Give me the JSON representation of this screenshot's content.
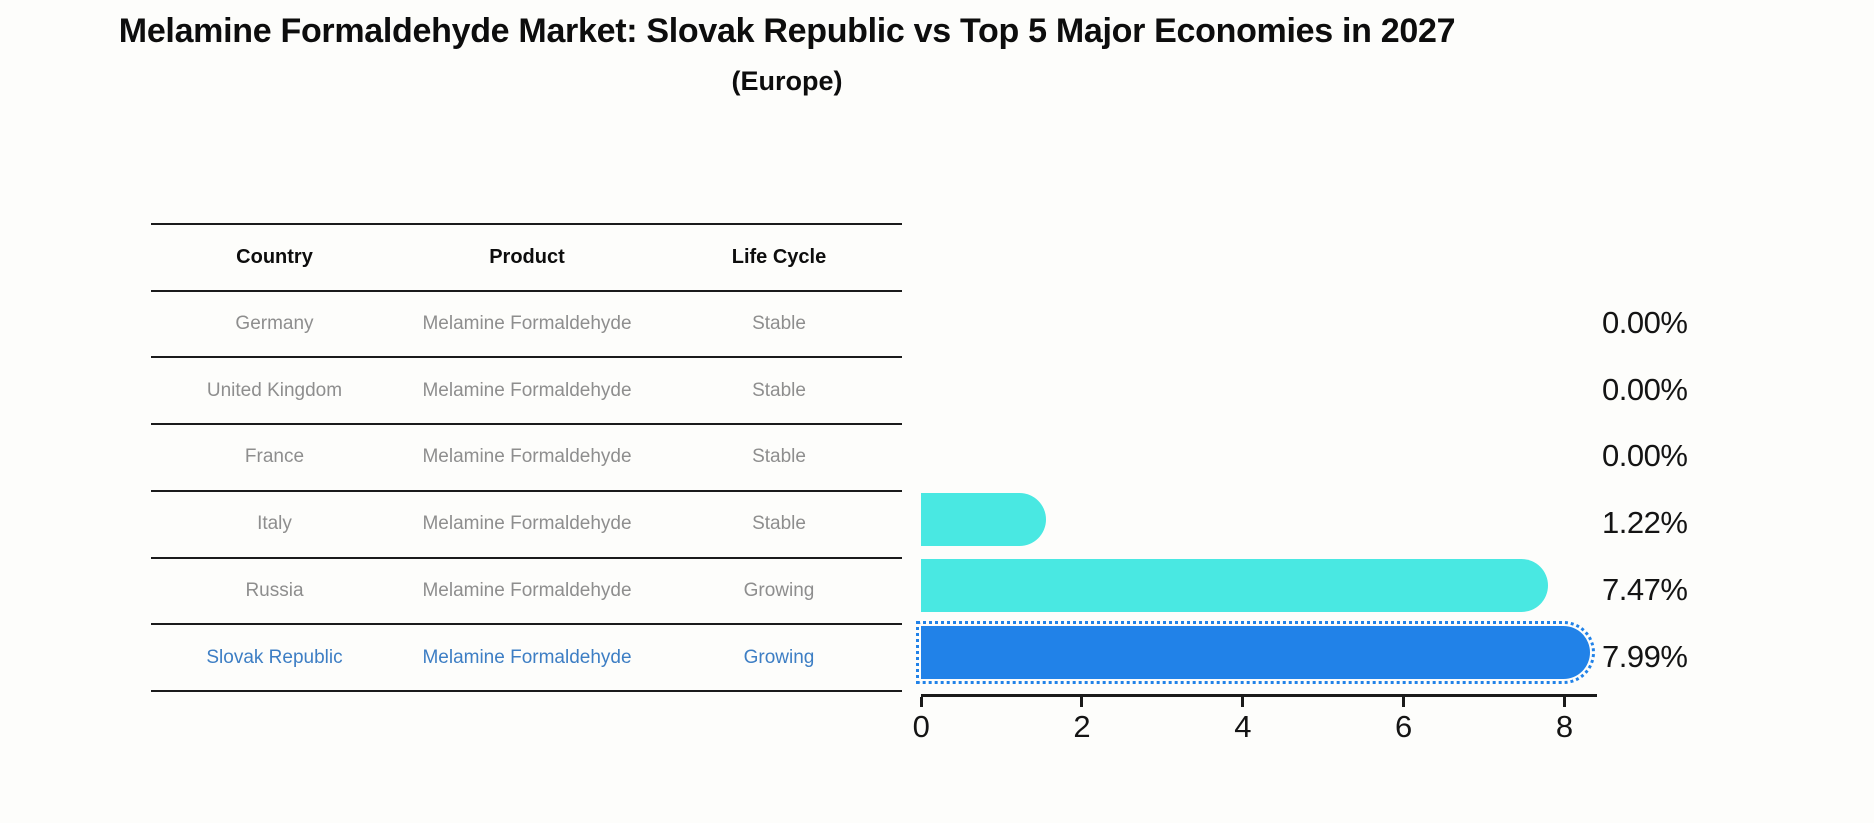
{
  "title": "Melamine Formaldehyde Market: Slovak Republic vs Top 5 Major Economies in 2027",
  "subtitle": "(Europe)",
  "table": {
    "headers": [
      "Country",
      "Product",
      "Life Cycle"
    ],
    "rows": [
      {
        "country": "Germany",
        "product": "Melamine Formaldehyde",
        "life_cycle": "Stable",
        "highlighted": false
      },
      {
        "country": "United Kingdom",
        "product": "Melamine Formaldehyde",
        "life_cycle": "Stable",
        "highlighted": false
      },
      {
        "country": "France",
        "product": "Melamine Formaldehyde",
        "life_cycle": "Stable",
        "highlighted": false
      },
      {
        "country": "Italy",
        "product": "Melamine Formaldehyde",
        "life_cycle": "Stable",
        "highlighted": false
      },
      {
        "country": "Russia",
        "product": "Melamine Formaldehyde",
        "life_cycle": "Growing",
        "highlighted": false
      },
      {
        "country": "Slovak Republic",
        "product": "Melamine Formaldehyde",
        "life_cycle": "Growing",
        "highlighted": true
      }
    ]
  },
  "chart_data": {
    "type": "bar",
    "orientation": "horizontal",
    "title": "Melamine Formaldehyde Market: Slovak Republic vs Top 5 Major Economies in 2027",
    "subtitle": "(Europe)",
    "categories": [
      "Germany",
      "United Kingdom",
      "France",
      "Italy",
      "Russia",
      "Slovak Republic"
    ],
    "values": [
      0.0,
      0.0,
      0.0,
      1.22,
      7.47,
      7.99
    ],
    "value_labels": [
      "0.00%",
      "0.00%",
      "0.00%",
      "1.22%",
      "7.47%",
      "7.99%"
    ],
    "unit": "%",
    "xlim": [
      0,
      8.4
    ],
    "x_ticks": [
      0,
      2,
      4,
      6,
      8
    ],
    "grid": false,
    "legend": false,
    "highlight_index": 5
  },
  "colors": {
    "background": "#fdfdfb",
    "bar_default": "#49e8e2",
    "bar_highlight": "#2182e8",
    "highlight_text": "#3d7ec4",
    "row_text": "#8e8e8e",
    "header_text": "#0d0d0d",
    "axis": "#1a1a1a",
    "value_label_text": "#141414"
  }
}
